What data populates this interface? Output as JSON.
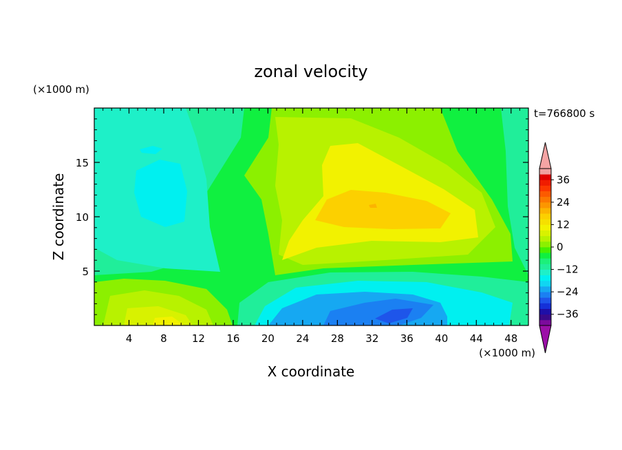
{
  "chart_data": {
    "type": "heatmap",
    "title": "zonal velocity",
    "xlabel": "X coordinate",
    "ylabel": "Z coordinate",
    "x_units": "(×1000 m)",
    "y_units": "(×1000 m)",
    "time_label": "t=766800 s",
    "xlim": [
      0,
      50
    ],
    "ylim": [
      0,
      20
    ],
    "x_ticks": [
      4,
      8,
      12,
      16,
      20,
      24,
      28,
      32,
      36,
      40,
      44,
      48
    ],
    "y_ticks": [
      5,
      10,
      15
    ],
    "colorbar": {
      "levels": [
        -42,
        -39,
        -36,
        -33,
        -30,
        -27,
        -24,
        -21,
        -18,
        -15,
        -12,
        -9,
        -6,
        -3,
        0,
        3,
        6,
        9,
        12,
        15,
        18,
        21,
        24,
        27,
        30,
        33,
        36,
        39,
        42
      ],
      "tick_labels": [
        "36",
        "24",
        "12",
        "0",
        "-12",
        "-24",
        "-36"
      ],
      "colors": [
        "#7c0a9c",
        "#3a0a8a",
        "#1e0fa8",
        "#1530d8",
        "#1e55ea",
        "#1b80f2",
        "#16a8f2",
        "#10d6f2",
        "#00f0f0",
        "#1ef0c8",
        "#20ee9a",
        "#1cf07a",
        "#10f040",
        "#46f000",
        "#8cf000",
        "#b8f200",
        "#d8f200",
        "#f2f200",
        "#f6e000",
        "#fcd000",
        "#fcb400",
        "#fc9600",
        "#fc7800",
        "#fc5a00",
        "#fc3800",
        "#f01c00",
        "#e00000",
        "#f0a0a0"
      ],
      "under_color": "#9c10a8",
      "over_color": "#f4a4a4"
    },
    "features": [
      {
        "x": 8.5,
        "z": 12,
        "value": -10
      },
      {
        "x": 15.5,
        "z": 14,
        "value": 0
      },
      {
        "x": 5,
        "z": 5,
        "value": 2
      },
      {
        "x": 30,
        "z": 10.5,
        "value": 16
      },
      {
        "x": 32,
        "z": 1.5,
        "value": -26
      },
      {
        "x": 10,
        "z": 0.5,
        "value": 10
      },
      {
        "x": 48,
        "z": 15,
        "value": -3
      }
    ]
  }
}
